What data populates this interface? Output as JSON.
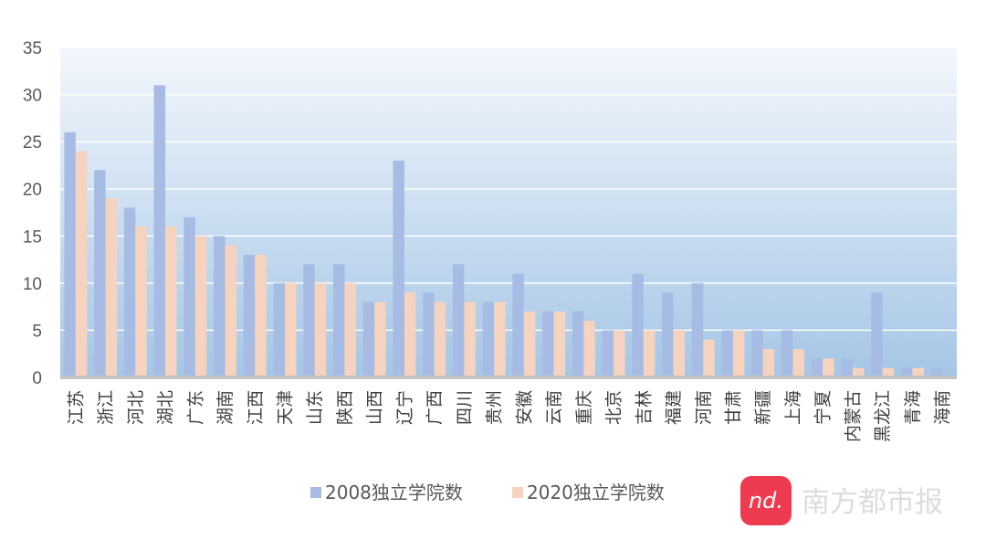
{
  "chart_data": {
    "type": "bar",
    "title": "",
    "xlabel": "",
    "ylabel": "",
    "ylim": [
      0,
      35
    ],
    "yticks": [
      0,
      5,
      10,
      15,
      20,
      25,
      30,
      35
    ],
    "grid": true,
    "legend_position": "bottom",
    "categories": [
      "江苏",
      "浙江",
      "河北",
      "湖北",
      "广东",
      "湖南",
      "江西",
      "天津",
      "山东",
      "陕西",
      "山西",
      "辽宁",
      "广西",
      "四川",
      "贵州",
      "安徽",
      "云南",
      "重庆",
      "北京",
      "吉林",
      "福建",
      "河南",
      "甘肃",
      "新疆",
      "上海",
      "宁夏",
      "内蒙古",
      "黑龙江",
      "青海",
      "海南"
    ],
    "series": [
      {
        "name": "2008独立学院数",
        "color": "#a7bce4",
        "values": [
          26,
          22,
          18,
          31,
          17,
          15,
          13,
          10,
          12,
          12,
          8,
          23,
          9,
          12,
          8,
          11,
          7,
          7,
          5,
          11,
          9,
          10,
          5,
          5,
          5,
          2,
          2,
          9,
          1,
          1
        ]
      },
      {
        "name": "2020独立学院数",
        "color": "#f5d3bf",
        "values": [
          24,
          19,
          16,
          16,
          15,
          14,
          13,
          10,
          10,
          10,
          8,
          9,
          8,
          8,
          8,
          7,
          7,
          6,
          5,
          5,
          5,
          4,
          5,
          3,
          3,
          2,
          1,
          1,
          1,
          0
        ]
      }
    ]
  },
  "watermark": {
    "logo_text": "nd.",
    "brand": "南方都市报",
    "logo_color": "#ee3b4f"
  }
}
